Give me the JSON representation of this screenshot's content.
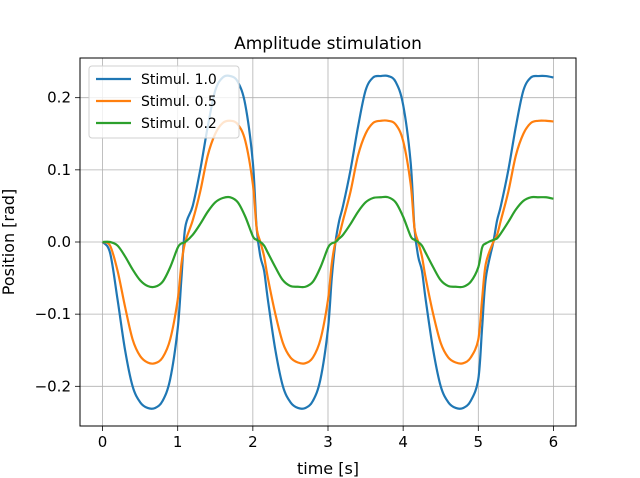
{
  "chart_data": {
    "type": "line",
    "title": "Amplitude stimulation",
    "xlabel": "time [s]",
    "ylabel": "Position [rad]",
    "xlim": [
      -0.3,
      6.3
    ],
    "ylim": [
      -0.255,
      0.255
    ],
    "xticks": [
      0,
      1,
      2,
      3,
      4,
      5,
      6
    ],
    "xtick_labels": [
      "0",
      "1",
      "2",
      "3",
      "4",
      "5",
      "6"
    ],
    "yticks": [
      -0.2,
      -0.1,
      0.0,
      0.1,
      0.2
    ],
    "ytick_labels": [
      "−0.2",
      "−0.1",
      "0.0",
      "0.1",
      "0.2"
    ],
    "grid": true,
    "legend_position": "top-left",
    "series": [
      {
        "name": "Stimul. 1.0",
        "color": "#1f77b4",
        "x": [
          0,
          0.1,
          0.2,
          0.3,
          0.4,
          0.5,
          0.6,
          0.7,
          0.8,
          0.9,
          1.0,
          1.05,
          1.1,
          1.2,
          1.3,
          1.4,
          1.5,
          1.6,
          1.7,
          1.8,
          1.9,
          2.0,
          2.05,
          2.1,
          2.15,
          2.2,
          2.3,
          2.4,
          2.5,
          2.6,
          2.7,
          2.8,
          2.9,
          3.0,
          3.05,
          3.1,
          3.15,
          3.2,
          3.3,
          3.4,
          3.5,
          3.6,
          3.7,
          3.8,
          3.9,
          4.0,
          4.1,
          4.15,
          4.2,
          4.25,
          4.3,
          4.4,
          4.5,
          4.6,
          4.7,
          4.8,
          4.9,
          5.0,
          5.05,
          5.1,
          5.2,
          5.25,
          5.3,
          5.4,
          5.5,
          5.6,
          5.7,
          5.8,
          5.9,
          6.0
        ],
        "y": [
          0.0,
          -0.015,
          -0.08,
          -0.15,
          -0.2,
          -0.222,
          -0.23,
          -0.23,
          -0.22,
          -0.19,
          -0.12,
          -0.05,
          0.02,
          0.05,
          0.1,
          0.16,
          0.21,
          0.228,
          0.23,
          0.222,
          0.19,
          0.11,
          0.02,
          -0.02,
          -0.04,
          -0.08,
          -0.15,
          -0.2,
          -0.222,
          -0.23,
          -0.23,
          -0.22,
          -0.19,
          -0.12,
          -0.05,
          0.0,
          0.03,
          0.05,
          0.1,
          0.16,
          0.21,
          0.228,
          0.23,
          0.23,
          0.222,
          0.19,
          0.11,
          0.02,
          -0.02,
          -0.04,
          -0.08,
          -0.15,
          -0.2,
          -0.222,
          -0.23,
          -0.23,
          -0.22,
          -0.19,
          -0.12,
          -0.05,
          0.0,
          0.03,
          0.05,
          0.1,
          0.16,
          0.21,
          0.228,
          0.23,
          0.23,
          0.228
        ]
      },
      {
        "name": "Stimul. 0.5",
        "color": "#ff7f0e",
        "x": [
          0,
          0.1,
          0.2,
          0.3,
          0.4,
          0.5,
          0.6,
          0.7,
          0.8,
          0.9,
          1.0,
          1.05,
          1.1,
          1.2,
          1.3,
          1.4,
          1.5,
          1.6,
          1.7,
          1.8,
          1.9,
          2.0,
          2.05,
          2.1,
          2.15,
          2.2,
          2.3,
          2.4,
          2.5,
          2.6,
          2.7,
          2.8,
          2.9,
          3.0,
          3.05,
          3.1,
          3.15,
          3.2,
          3.3,
          3.4,
          3.5,
          3.6,
          3.7,
          3.8,
          3.9,
          4.0,
          4.1,
          4.15,
          4.2,
          4.25,
          4.3,
          4.4,
          4.5,
          4.6,
          4.7,
          4.8,
          4.9,
          5.0,
          5.05,
          5.1,
          5.2,
          5.25,
          5.3,
          5.4,
          5.5,
          5.6,
          5.7,
          5.8,
          5.9,
          6.0
        ],
        "y": [
          0.0,
          -0.005,
          -0.04,
          -0.09,
          -0.135,
          -0.158,
          -0.167,
          -0.168,
          -0.16,
          -0.135,
          -0.08,
          -0.03,
          0.0,
          0.03,
          0.07,
          0.12,
          0.15,
          0.165,
          0.168,
          0.163,
          0.14,
          0.08,
          0.02,
          0.0,
          -0.02,
          -0.05,
          -0.1,
          -0.14,
          -0.16,
          -0.167,
          -0.168,
          -0.16,
          -0.135,
          -0.08,
          -0.03,
          0.0,
          0.01,
          0.03,
          0.07,
          0.12,
          0.15,
          0.165,
          0.168,
          0.168,
          0.163,
          0.14,
          0.08,
          0.02,
          0.0,
          -0.02,
          -0.05,
          -0.1,
          -0.14,
          -0.16,
          -0.167,
          -0.168,
          -0.16,
          -0.135,
          -0.08,
          -0.03,
          0.0,
          0.01,
          0.03,
          0.07,
          0.12,
          0.15,
          0.165,
          0.168,
          0.168,
          0.167
        ]
      },
      {
        "name": "Stimul. 0.2",
        "color": "#2ca02c",
        "x": [
          0,
          0.1,
          0.2,
          0.3,
          0.4,
          0.5,
          0.6,
          0.7,
          0.8,
          0.9,
          1.0,
          1.05,
          1.1,
          1.2,
          1.3,
          1.4,
          1.5,
          1.6,
          1.7,
          1.8,
          1.9,
          2.0,
          2.05,
          2.1,
          2.15,
          2.2,
          2.3,
          2.4,
          2.5,
          2.6,
          2.7,
          2.8,
          2.9,
          3.0,
          3.05,
          3.1,
          3.15,
          3.2,
          3.3,
          3.4,
          3.5,
          3.6,
          3.7,
          3.8,
          3.9,
          4.0,
          4.1,
          4.15,
          4.2,
          4.25,
          4.3,
          4.4,
          4.5,
          4.6,
          4.7,
          4.8,
          4.9,
          5.0,
          5.05,
          5.1,
          5.2,
          5.25,
          5.3,
          5.4,
          5.5,
          5.6,
          5.7,
          5.8,
          5.9,
          6.0
        ],
        "y": [
          0.0,
          0.0,
          -0.005,
          -0.02,
          -0.038,
          -0.053,
          -0.061,
          -0.062,
          -0.055,
          -0.035,
          -0.008,
          -0.002,
          0.0,
          0.01,
          0.025,
          0.042,
          0.055,
          0.061,
          0.062,
          0.055,
          0.035,
          0.008,
          0.003,
          0.0,
          -0.005,
          -0.015,
          -0.035,
          -0.053,
          -0.061,
          -0.062,
          -0.062,
          -0.055,
          -0.035,
          -0.008,
          -0.002,
          0.0,
          0.005,
          0.01,
          0.025,
          0.042,
          0.055,
          0.061,
          0.062,
          0.062,
          0.055,
          0.035,
          0.008,
          0.003,
          0.0,
          -0.005,
          -0.015,
          -0.035,
          -0.053,
          -0.061,
          -0.062,
          -0.062,
          -0.055,
          -0.035,
          -0.008,
          -0.002,
          0.003,
          0.005,
          0.012,
          0.028,
          0.045,
          0.057,
          0.062,
          0.062,
          0.062,
          0.06
        ]
      }
    ]
  }
}
